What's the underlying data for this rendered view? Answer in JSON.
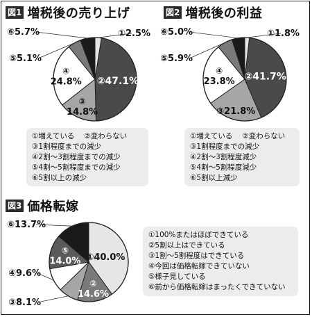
{
  "figures": [
    {
      "tag": "図1",
      "title": "増税後の売り上げ",
      "slices": [
        {
          "label": "①2.5%",
          "value": 2.5,
          "color": "#e6e6e6",
          "num": "①",
          "pct": "2.5%"
        },
        {
          "label": "②47.1%",
          "value": 47.1,
          "color": "#4a4a4a",
          "num": "②",
          "pct": "47.1%"
        },
        {
          "label": "③14.8%",
          "value": 14.8,
          "color": "#a6a6a6",
          "num": "③",
          "pct": "14.8%"
        },
        {
          "label": "④24.8%",
          "value": 24.8,
          "color": "#ffffff",
          "num": "④",
          "pct": "24.8%"
        },
        {
          "label": "⑤5.1%",
          "value": 5.1,
          "color": "#7a7a7a",
          "num": "⑤",
          "pct": "5.1%"
        },
        {
          "label": "⑥5.7%",
          "value": 5.7,
          "color": "#1a1a1a",
          "num": "⑥",
          "pct": "5.7%"
        }
      ],
      "legend_rows": [
        [
          "①増えている",
          "②変わらない"
        ],
        [
          "③1割程度までの減少"
        ],
        [
          "④2割～3割程度までの減少"
        ],
        [
          "⑤4割～5割程度までの減少"
        ],
        [
          "⑥5割以上の減少"
        ]
      ]
    },
    {
      "tag": "図2",
      "title": "増税後の利益",
      "slices": [
        {
          "label": "①1.8%",
          "value": 1.8,
          "color": "#e6e6e6",
          "num": "①",
          "pct": "1.8%"
        },
        {
          "label": "②41.7%",
          "value": 41.7,
          "color": "#4a4a4a",
          "num": "②",
          "pct": "41.7%"
        },
        {
          "label": "③21.8%",
          "value": 21.8,
          "color": "#a6a6a6",
          "num": "③",
          "pct": "21.8%"
        },
        {
          "label": "④23.8%",
          "value": 23.8,
          "color": "#ffffff",
          "num": "④",
          "pct": "23.8%"
        },
        {
          "label": "⑤5.9%",
          "value": 5.9,
          "color": "#7a7a7a",
          "num": "⑤",
          "pct": "5.9%"
        },
        {
          "label": "⑥5.0%",
          "value": 5.0,
          "color": "#1a1a1a",
          "num": "⑥",
          "pct": "5.0%"
        }
      ],
      "legend_rows": [
        [
          "①増えている",
          "②変わらない"
        ],
        [
          "③1割程度までの減少"
        ],
        [
          "④2割～3割程度減少"
        ],
        [
          "⑤4割～5割程度減少"
        ],
        [
          "⑥5割以上減少"
        ]
      ]
    },
    {
      "tag": "図3",
      "title": "価格転嫁",
      "slices": [
        {
          "label": "①40.0%",
          "value": 40.0,
          "color": "#e6e6e6",
          "num": "①",
          "pct": "40.0%"
        },
        {
          "label": "②14.6%",
          "value": 14.6,
          "color": "#7a7a7a",
          "num": "②",
          "pct": "14.6%"
        },
        {
          "label": "③8.1%",
          "value": 8.1,
          "color": "#a6a6a6",
          "num": "③",
          "pct": "8.1%"
        },
        {
          "label": "④9.6%",
          "value": 9.6,
          "color": "#ffffff",
          "num": "④",
          "pct": "9.6%"
        },
        {
          "label": "⑤14.0%",
          "value": 14.0,
          "color": "#5a5a5a",
          "num": "⑤",
          "pct": "14.0%"
        },
        {
          "label": "⑥13.7%",
          "value": 13.7,
          "color": "#1a1a1a",
          "num": "⑥",
          "pct": "13.7%"
        }
      ],
      "legend_rows": [
        [
          "①100%またはほぼできている"
        ],
        [
          "②5割以上はできている"
        ],
        [
          "③1割～5割程度はできている"
        ],
        [
          "④今回は価格転嫁できていない"
        ],
        [
          "⑤様子見している"
        ],
        [
          "⑥前から価格転嫁はまったくできていない"
        ]
      ]
    }
  ],
  "chart_data": [
    {
      "type": "pie",
      "title": "増税後の売り上げ",
      "categories": [
        "①",
        "②",
        "③",
        "④",
        "⑤",
        "⑥"
      ],
      "values": [
        2.5,
        47.1,
        14.8,
        24.8,
        5.1,
        5.7
      ],
      "legend": [
        "①増えている",
        "②変わらない",
        "③1割程度までの減少",
        "④2割～3割程度までの減少",
        "⑤4割～5割程度までの減少",
        "⑥5割以上の減少"
      ]
    },
    {
      "type": "pie",
      "title": "増税後の利益",
      "categories": [
        "①",
        "②",
        "③",
        "④",
        "⑤",
        "⑥"
      ],
      "values": [
        1.8,
        41.7,
        21.8,
        23.8,
        5.9,
        5.0
      ],
      "legend": [
        "①増えている",
        "②変わらない",
        "③1割程度までの減少",
        "④2割～3割程度減少",
        "⑤4割～5割程度減少",
        "⑥5割以上減少"
      ]
    },
    {
      "type": "pie",
      "title": "価格転嫁",
      "categories": [
        "①",
        "②",
        "③",
        "④",
        "⑤",
        "⑥"
      ],
      "values": [
        40.0,
        14.6,
        8.1,
        9.6,
        14.0,
        13.7
      ],
      "legend": [
        "①100%またはほぼできている",
        "②5割以上はできている",
        "③1割～5割程度はできている",
        "④今回は価格転嫁できていない",
        "⑤様子見している",
        "⑥前から価格転嫁はまったくできていない"
      ]
    }
  ]
}
